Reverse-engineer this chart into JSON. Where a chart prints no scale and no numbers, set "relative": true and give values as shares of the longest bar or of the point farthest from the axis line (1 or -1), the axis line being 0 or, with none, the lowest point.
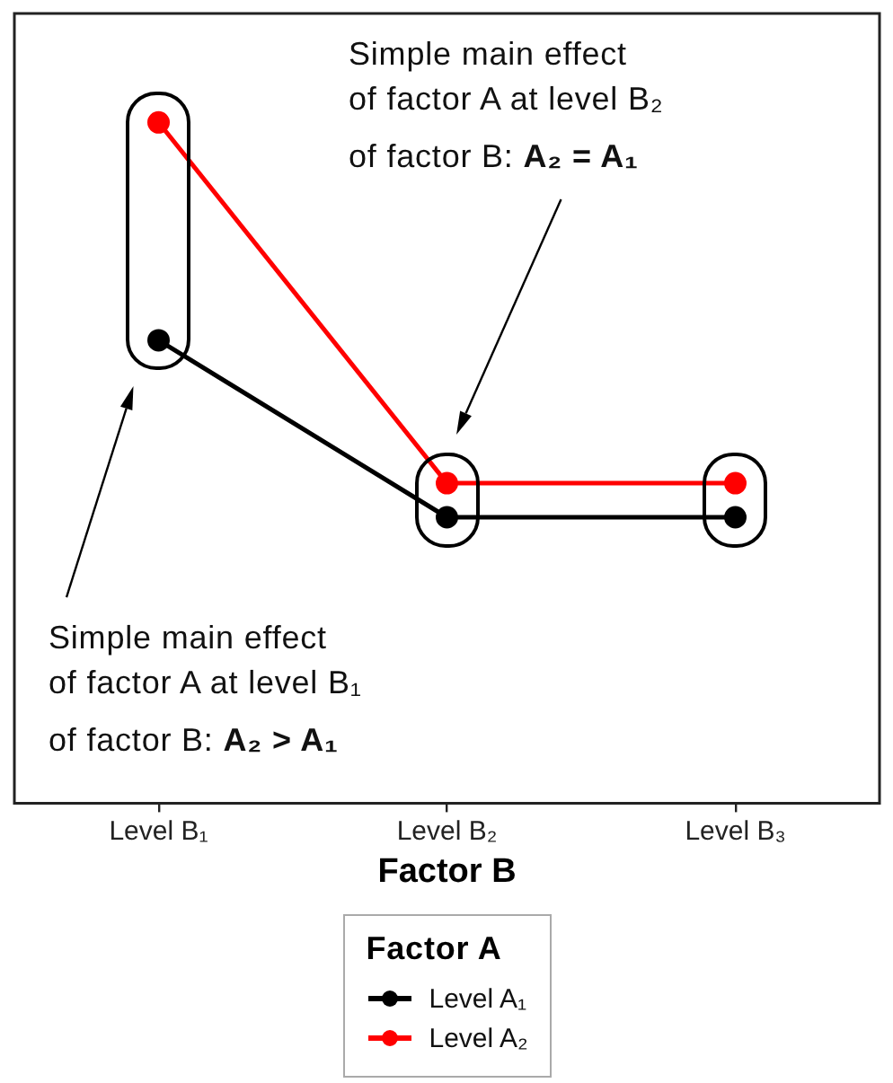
{
  "chart_data": {
    "type": "line",
    "xlabel": "Factor B",
    "legend_title": "Factor A",
    "legend": "bottom",
    "relative": true,
    "marker": "circle",
    "line_style": "solid",
    "categories": [
      "Level B₁",
      "Level B₂",
      "Level B₃"
    ],
    "series": [
      {
        "name": "Level A₁",
        "color": "#000000",
        "values": [
          0.68,
          0.42,
          0.42
        ]
      },
      {
        "name": "Level A₂",
        "color": "#ff0000",
        "values": [
          1,
          0.47,
          0.47
        ]
      }
    ],
    "annotations": [
      "Simple main effect\nof factor A at level B₂\nof factor B: A₂ = A₁",
      "Simple main effect\nof factor A at level B₁\nof factor B: A₂ > A₁"
    ]
  }
}
